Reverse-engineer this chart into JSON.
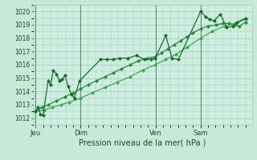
{
  "bg_color": "#c8e8d8",
  "plot_bg_color": "#d0eee0",
  "grid_color": "#99ccbb",
  "line_color": "#1a6b2a",
  "line_color2": "#2a8a3a",
  "line_color3": "#3aaa4a",
  "title": "Pression niveau de la mer( hPa )",
  "ylim": [
    1011.5,
    1020.5
  ],
  "yticks": [
    1012,
    1013,
    1014,
    1015,
    1016,
    1017,
    1018,
    1019,
    1020
  ],
  "xtick_labels": [
    "Jeu",
    "Dim",
    "Ven",
    "Sam"
  ],
  "xtick_positions": [
    0.0,
    0.214,
    0.571,
    0.786
  ],
  "series1_x": [
    0.0,
    0.012,
    0.024,
    0.036,
    0.06,
    0.072,
    0.085,
    0.1,
    0.115,
    0.127,
    0.14,
    0.155,
    0.17,
    0.185,
    0.21,
    0.31,
    0.34,
    0.37,
    0.4,
    0.44,
    0.48,
    0.52,
    0.55,
    0.57,
    0.62,
    0.65,
    0.68,
    0.786,
    0.81,
    0.83,
    0.85,
    0.88,
    0.91,
    0.94,
    0.96,
    1.0
  ],
  "series1": [
    1012.5,
    1012.8,
    1012.3,
    1012.2,
    1014.8,
    1014.5,
    1015.6,
    1015.3,
    1014.8,
    1014.9,
    1015.2,
    1014.4,
    1013.8,
    1013.5,
    1014.8,
    1016.4,
    1016.4,
    1016.4,
    1016.5,
    1016.5,
    1016.7,
    1016.4,
    1016.4,
    1016.5,
    1018.2,
    1016.5,
    1016.4,
    1020.0,
    1019.6,
    1019.4,
    1019.3,
    1019.8,
    1018.8,
    1018.9,
    1019.2,
    1019.5
  ],
  "series2_x": [
    0.0,
    0.03,
    0.06,
    0.1,
    0.14,
    0.18,
    0.214,
    0.25,
    0.29,
    0.33,
    0.37,
    0.41,
    0.45,
    0.49,
    0.53,
    0.57,
    0.6,
    0.63,
    0.66,
    0.69,
    0.72,
    0.75,
    0.786,
    0.82,
    0.86,
    0.89,
    0.92,
    0.95,
    0.97,
    1.0
  ],
  "series2": [
    1012.5,
    1012.8,
    1013.0,
    1013.3,
    1013.6,
    1013.9,
    1014.2,
    1014.5,
    1014.8,
    1015.1,
    1015.4,
    1015.7,
    1016.0,
    1016.3,
    1016.5,
    1016.6,
    1016.9,
    1017.2,
    1017.5,
    1017.8,
    1018.1,
    1018.4,
    1018.7,
    1018.9,
    1019.0,
    1019.1,
    1019.1,
    1019.0,
    1018.9,
    1019.2
  ],
  "series3_x": [
    0.0,
    0.04,
    0.08,
    0.12,
    0.16,
    0.214,
    0.27,
    0.33,
    0.39,
    0.45,
    0.51,
    0.57,
    0.62,
    0.67,
    0.72,
    0.786,
    0.84,
    0.9,
    0.95,
    1.0
  ],
  "series3": [
    1012.5,
    1012.6,
    1012.8,
    1013.0,
    1013.2,
    1013.5,
    1013.9,
    1014.3,
    1014.7,
    1015.1,
    1015.6,
    1016.0,
    1016.4,
    1016.8,
    1017.3,
    1018.0,
    1018.5,
    1018.9,
    1019.1,
    1019.4
  ]
}
